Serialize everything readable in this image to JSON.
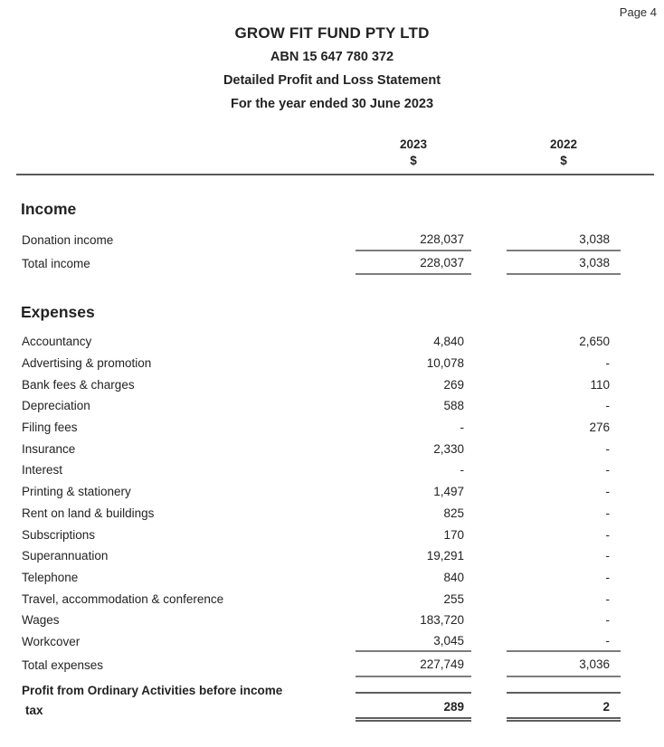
{
  "page": {
    "number_label": "Page 4"
  },
  "header": {
    "company": "GROW FIT FUND PTY LTD",
    "abn": "ABN 15 647 780 372",
    "statement_title": "Detailed Profit and Loss Statement",
    "period": "For the year ended 30 June 2023"
  },
  "columns": {
    "col1": {
      "year": "2023",
      "currency": "$"
    },
    "col2": {
      "year": "2022",
      "currency": "$"
    }
  },
  "income": {
    "title": "Income",
    "rows": [
      {
        "label": "Donation income",
        "y2023": "228,037",
        "y2022": "3,038"
      },
      {
        "label": "Total income",
        "y2023": "228,037",
        "y2022": "3,038"
      }
    ]
  },
  "expenses": {
    "title": "Expenses",
    "rows": [
      {
        "label": "Accountancy",
        "y2023": "4,840",
        "y2022": "2,650"
      },
      {
        "label": "Advertising & promotion",
        "y2023": "10,078",
        "y2022": "-"
      },
      {
        "label": "Bank fees & charges",
        "y2023": "269",
        "y2022": "110"
      },
      {
        "label": "Depreciation",
        "y2023": "588",
        "y2022": "-"
      },
      {
        "label": "Filing fees",
        "y2023": "-",
        "y2022": "276"
      },
      {
        "label": "Insurance",
        "y2023": "2,330",
        "y2022": "-"
      },
      {
        "label": "Interest",
        "y2023": "-",
        "y2022": "-"
      },
      {
        "label": "Printing & stationery",
        "y2023": "1,497",
        "y2022": "-"
      },
      {
        "label": "Rent on land & buildings",
        "y2023": "825",
        "y2022": "-"
      },
      {
        "label": "Subscriptions",
        "y2023": "170",
        "y2022": "-"
      },
      {
        "label": "Superannuation",
        "y2023": "19,291",
        "y2022": "-"
      },
      {
        "label": "Telephone",
        "y2023": "840",
        "y2022": "-"
      },
      {
        "label": "Travel, accommodation & conference",
        "y2023": "255",
        "y2022": "-"
      },
      {
        "label": "Wages",
        "y2023": "183,720",
        "y2022": "-"
      },
      {
        "label": "Workcover",
        "y2023": "3,045",
        "y2022": "-"
      }
    ],
    "total": {
      "label": "Total expenses",
      "y2023": "227,749",
      "y2022": "3,036"
    }
  },
  "profit": {
    "label_line1": "Profit from Ordinary Activities before income",
    "label_line2": "tax",
    "y2023": "289",
    "y2022": "2"
  },
  "colors": {
    "text": "#232323",
    "header_rule": "#5a5a5a",
    "value_rule": "#7d7d7d"
  }
}
